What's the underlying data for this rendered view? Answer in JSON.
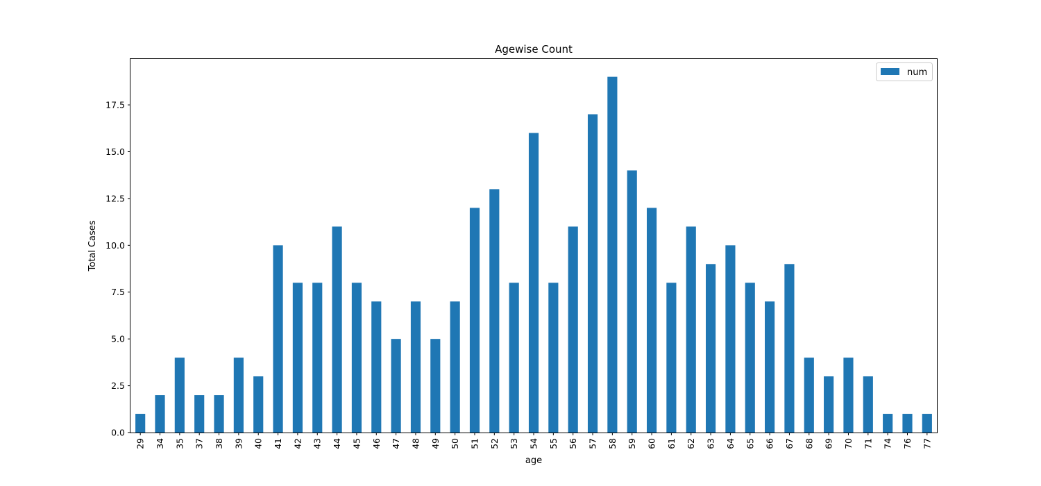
{
  "chart_data": {
    "type": "bar",
    "title": "Agewise Count",
    "xlabel": "age",
    "ylabel": "Total Cases",
    "categories": [
      "29",
      "34",
      "35",
      "37",
      "38",
      "39",
      "40",
      "41",
      "42",
      "43",
      "44",
      "45",
      "46",
      "47",
      "48",
      "49",
      "50",
      "51",
      "52",
      "53",
      "54",
      "55",
      "56",
      "57",
      "58",
      "59",
      "60",
      "61",
      "62",
      "63",
      "64",
      "65",
      "66",
      "67",
      "68",
      "69",
      "70",
      "71",
      "74",
      "76",
      "77"
    ],
    "series": [
      {
        "name": "num",
        "color": "#1f77b4",
        "values": [
          1,
          2,
          4,
          2,
          2,
          4,
          3,
          10,
          8,
          8,
          11,
          8,
          7,
          5,
          7,
          5,
          7,
          12,
          13,
          8,
          16,
          8,
          11,
          17,
          19,
          14,
          12,
          8,
          11,
          9,
          10,
          8,
          7,
          9,
          4,
          3,
          4,
          3,
          1,
          1,
          1
        ]
      }
    ],
    "ylim": [
      0,
      19.95
    ],
    "yticks": [
      "0.0",
      "2.5",
      "5.0",
      "7.5",
      "10.0",
      "12.5",
      "15.0",
      "17.5"
    ],
    "legend_position": "top-right",
    "grid": false
  }
}
